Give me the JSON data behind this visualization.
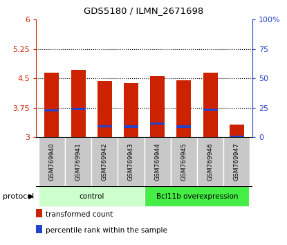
{
  "title": "GDS5180 / ILMN_2671698",
  "samples": [
    "GSM769940",
    "GSM769941",
    "GSM769942",
    "GSM769943",
    "GSM769944",
    "GSM769945",
    "GSM769946",
    "GSM769947"
  ],
  "bar_heights": [
    4.65,
    4.72,
    4.43,
    4.38,
    4.56,
    4.45,
    4.65,
    3.32
  ],
  "percentile_values": [
    3.68,
    3.72,
    3.28,
    3.27,
    3.35,
    3.27,
    3.7,
    3.02
  ],
  "bar_baseline": 3.0,
  "bar_color": "#cc2200",
  "percentile_color": "#2244cc",
  "ylim_left": [
    3.0,
    6.0
  ],
  "ylim_right": [
    0,
    100
  ],
  "yticks_left": [
    3,
    3.75,
    4.5,
    5.25,
    6
  ],
  "yticks_right": [
    0,
    25,
    50,
    75,
    100
  ],
  "ytick_labels_left": [
    "3",
    "3.75",
    "4.5",
    "5.25",
    "6"
  ],
  "ytick_labels_right": [
    "0",
    "25",
    "50",
    "75",
    "100%"
  ],
  "groups": [
    {
      "label": "control",
      "start": 0,
      "end": 4,
      "color": "#ccffcc"
    },
    {
      "label": "Bcl11b overexpression",
      "start": 4,
      "end": 8,
      "color": "#44ee44"
    }
  ],
  "protocol_label": "protocol",
  "legend_items": [
    {
      "color": "#cc2200",
      "label": "transformed count"
    },
    {
      "color": "#2244cc",
      "label": "percentile rank within the sample"
    }
  ],
  "left_axis_color": "#cc2200",
  "right_axis_color": "#2244cc",
  "bar_color_gray": "#bbbbbb",
  "bar_width": 0.55,
  "percentile_bar_height": 0.055,
  "grid_yticks": [
    3.75,
    4.5,
    5.25
  ]
}
